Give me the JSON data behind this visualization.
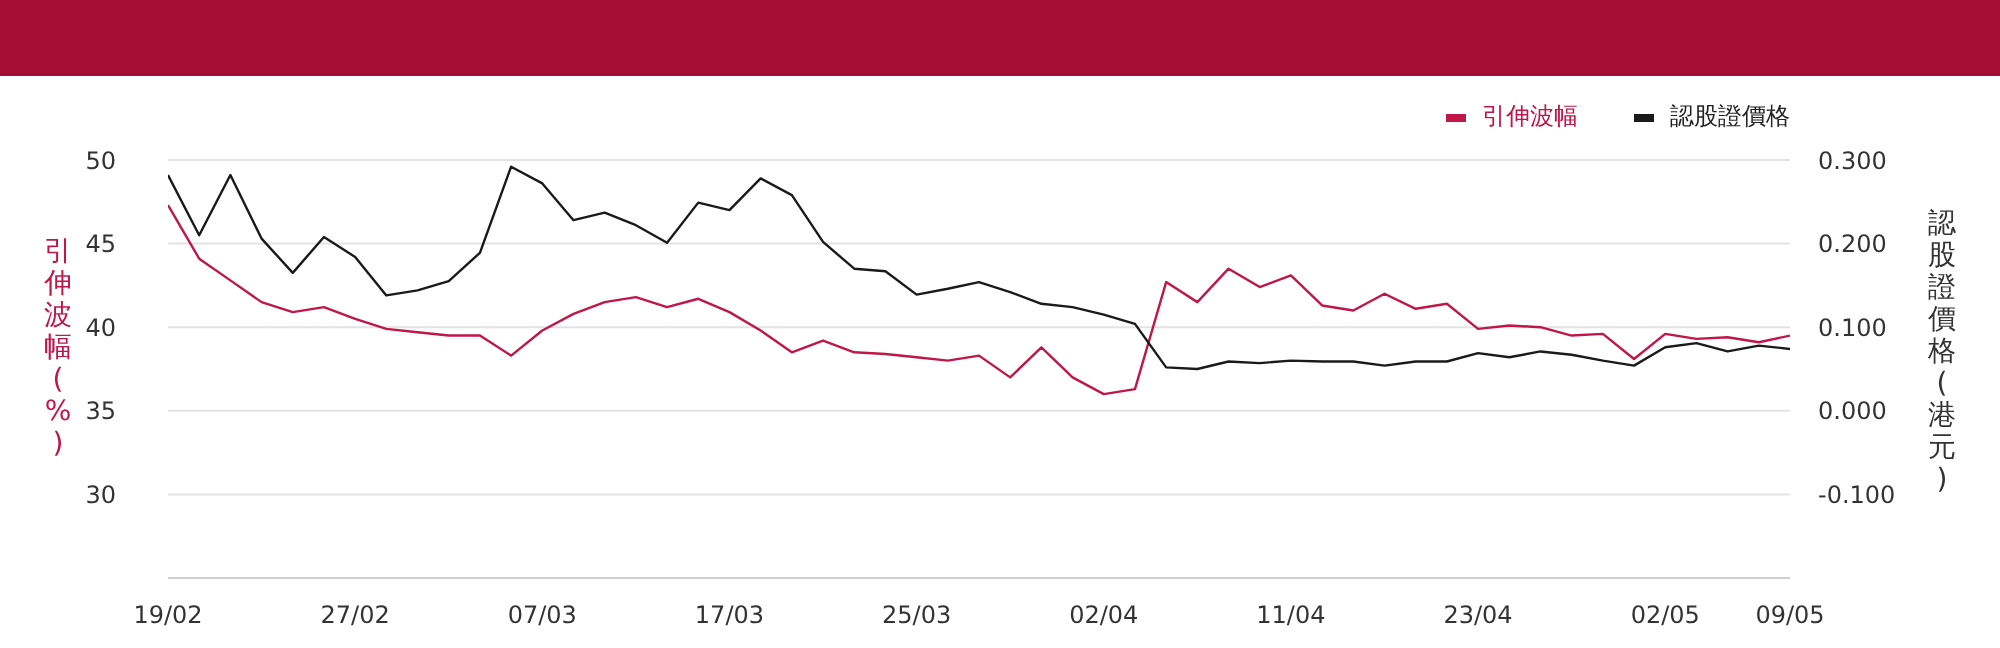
{
  "chart_data": {
    "type": "line",
    "categories": [
      "19/02",
      null,
      null,
      null,
      null,
      null,
      "27/02",
      null,
      null,
      null,
      null,
      null,
      "07/03",
      null,
      null,
      null,
      null,
      null,
      "17/03",
      null,
      null,
      null,
      null,
      null,
      "25/03",
      null,
      null,
      null,
      null,
      null,
      "02/04",
      null,
      null,
      null,
      null,
      null,
      "11/04",
      null,
      null,
      null,
      null,
      null,
      "23/04",
      null,
      null,
      null,
      null,
      null,
      "02/05",
      null,
      null,
      null,
      "09/05"
    ],
    "series": [
      {
        "name": "引伸波幅",
        "color": "#c0174a",
        "values": [
          47.3,
          44.1,
          42.8,
          41.5,
          40.9,
          41.2,
          40.5,
          39.9,
          39.7,
          39.5,
          39.5,
          38.3,
          39.8,
          40.8,
          41.5,
          41.8,
          41.2,
          41.7,
          40.9,
          39.8,
          38.5,
          39.2,
          38.5,
          38.4,
          38.2,
          38.0,
          38.3,
          37.0,
          38.8,
          37.0,
          36.0,
          36.3,
          42.7,
          41.5,
          43.5,
          42.4,
          43.1,
          41.3,
          41.0,
          42.0,
          41.1,
          41.4,
          39.9,
          40.1,
          40.0,
          39.5,
          39.6,
          38.1,
          39.6,
          39.3,
          39.4,
          39.1,
          39.5
        ]
      },
      {
        "name": "認股證價格",
        "color": "#1a1a1a",
        "axis": "y2",
        "values": [
          0.282,
          0.21,
          0.282,
          0.206,
          0.165,
          0.208,
          0.184,
          0.138,
          0.144,
          0.155,
          0.189,
          0.292,
          0.272,
          0.228,
          0.237,
          0.222,
          0.201,
          0.249,
          0.24,
          0.278,
          0.258,
          0.202,
          0.17,
          0.167,
          0.139,
          0.146,
          0.154,
          0.142,
          0.128,
          0.124,
          0.115,
          0.104,
          0.052,
          0.05,
          0.059,
          0.057,
          0.06,
          0.059,
          0.059,
          0.054,
          0.059,
          0.059,
          0.069,
          0.064,
          0.071,
          0.067,
          0.06,
          0.054,
          0.076,
          0.081,
          0.071,
          0.078,
          0.074
        ]
      }
    ],
    "ylabel": "引伸波幅(%)",
    "y2label": "認股證價格(港元)",
    "ylim": [
      25,
      50
    ],
    "yticks": [
      30,
      35,
      40,
      45,
      50
    ],
    "y2lim": [
      -0.2,
      0.3
    ],
    "y2ticks": [
      {
        "value": -0.1,
        "label": "-0.100"
      },
      {
        "value": 0,
        "label": "0.000"
      },
      {
        "value": 0.1,
        "label": "0.100"
      },
      {
        "value": 0.2,
        "label": "0.200"
      },
      {
        "value": 0.3,
        "label": "0.300"
      }
    ],
    "grid": "y",
    "legend": "top right",
    "marker": "none",
    "line_style": "solid"
  }
}
